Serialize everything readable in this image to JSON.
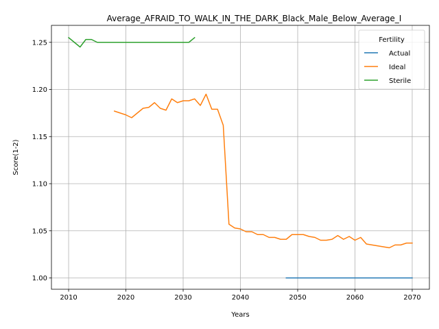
{
  "chart_data": {
    "type": "line",
    "title": "Average_AFRAID_TO_WALK_IN_THE_DARK_Black_Male_Below_Average_I",
    "xlabel": "Years",
    "ylabel": "Score(1-2)",
    "xlim": [
      2007,
      2073
    ],
    "ylim": [
      0.988,
      1.268
    ],
    "xticks": [
      2010,
      2020,
      2030,
      2040,
      2050,
      2060,
      2070
    ],
    "yticks": [
      1.0,
      1.05,
      1.1,
      1.15,
      1.2,
      1.25
    ],
    "xtick_labels": [
      "2010",
      "2020",
      "2030",
      "2040",
      "2050",
      "2060",
      "2070"
    ],
    "ytick_labels": [
      "1.00",
      "1.05",
      "1.10",
      "1.15",
      "1.20",
      "1.25"
    ],
    "grid": true,
    "legend": {
      "title": "Fertility",
      "position": "top-right"
    },
    "series": [
      {
        "name": "Actual",
        "color": "#1f77b4",
        "x": [
          2048,
          2050,
          2052,
          2054,
          2056,
          2058,
          2060,
          2062,
          2064,
          2066,
          2068,
          2070
        ],
        "y": [
          1.0,
          1.0,
          1.0,
          1.0,
          1.0,
          1.0,
          1.0,
          1.0,
          1.0,
          1.0,
          1.0,
          1.0
        ]
      },
      {
        "name": "Ideal",
        "color": "#ff7f0e",
        "x": [
          2018,
          2019,
          2020,
          2021,
          2022,
          2023,
          2024,
          2025,
          2026,
          2027,
          2028,
          2029,
          2030,
          2031,
          2032,
          2033,
          2034,
          2035,
          2036,
          2037,
          2038,
          2039,
          2040,
          2041,
          2042,
          2043,
          2044,
          2045,
          2046,
          2047,
          2048,
          2049,
          2050,
          2051,
          2052,
          2053,
          2054,
          2055,
          2056,
          2057,
          2058,
          2059,
          2060,
          2061,
          2062,
          2063,
          2064,
          2065,
          2066,
          2067,
          2068,
          2069,
          2070
        ],
        "y": [
          1.177,
          1.175,
          1.173,
          1.17,
          1.175,
          1.18,
          1.181,
          1.186,
          1.18,
          1.178,
          1.19,
          1.186,
          1.188,
          1.188,
          1.19,
          1.183,
          1.195,
          1.179,
          1.179,
          1.162,
          1.057,
          1.053,
          1.052,
          1.049,
          1.049,
          1.046,
          1.046,
          1.043,
          1.043,
          1.041,
          1.041,
          1.046,
          1.046,
          1.046,
          1.044,
          1.043,
          1.04,
          1.04,
          1.041,
          1.045,
          1.041,
          1.044,
          1.04,
          1.043,
          1.036,
          1.035,
          1.034,
          1.033,
          1.032,
          1.035,
          1.035,
          1.037,
          1.037
        ]
      },
      {
        "name": "Sterile",
        "color": "#2ca02c",
        "x": [
          2010,
          2011,
          2012,
          2013,
          2014,
          2015,
          2016,
          2017,
          2018,
          2019,
          2020,
          2021,
          2022,
          2023,
          2024,
          2025,
          2026,
          2027,
          2028,
          2029,
          2030,
          2031,
          2032
        ],
        "y": [
          1.255,
          1.25,
          1.245,
          1.253,
          1.253,
          1.25,
          1.25,
          1.25,
          1.25,
          1.25,
          1.25,
          1.25,
          1.25,
          1.25,
          1.25,
          1.25,
          1.25,
          1.25,
          1.25,
          1.25,
          1.25,
          1.25,
          1.255
        ]
      }
    ]
  }
}
